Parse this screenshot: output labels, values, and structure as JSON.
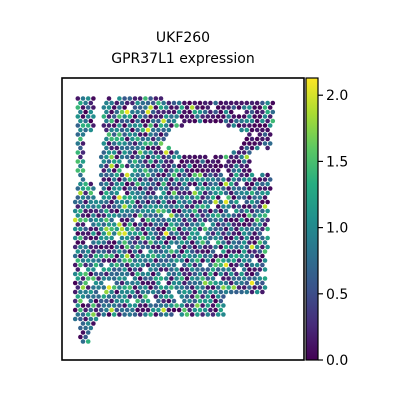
{
  "chart_data": {
    "type": "scatter",
    "title_lines": [
      "UKF260",
      "GPR37L1 expression"
    ],
    "xlabel": "",
    "ylabel": "",
    "colormap": "viridis",
    "colorbar": {
      "ticks": [
        0.0,
        0.5,
        1.0,
        1.5,
        2.0
      ],
      "tick_labels": [
        "0.0",
        "0.5",
        "1.0",
        "1.5",
        "2.0"
      ],
      "vmin": 0.0,
      "vmax": 2.13
    },
    "axes_ticks_visible": false,
    "grid": false,
    "legend": "none",
    "value_distribution": {
      "approx_mean": 0.75,
      "approx_max": 2.1,
      "hotspots_note": ""
    }
  }
}
